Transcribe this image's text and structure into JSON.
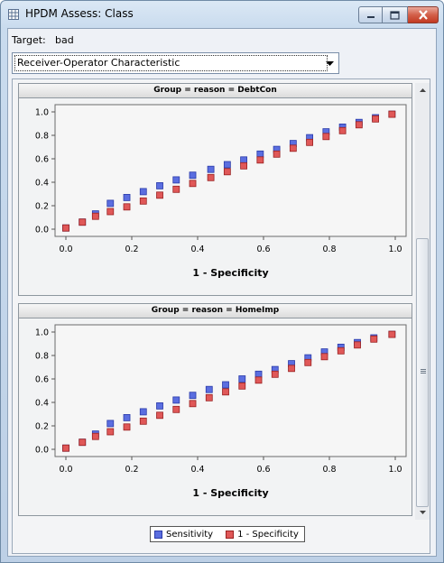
{
  "window": {
    "title": "HPDM Assess: Class"
  },
  "target": {
    "label": "Target:",
    "value": "bad"
  },
  "select": {
    "value": "Receiver-Operator Characteristic"
  },
  "colors": {
    "sensitivity": "#5b6ee0",
    "specificity": "#e05858",
    "sensitivity_edge": "#2a3aa8",
    "specificity_edge": "#9a2020"
  },
  "chart_data": [
    {
      "type": "scatter",
      "title": "Group = reason = DebtCon",
      "xlabel": "1 - Specificity",
      "ylabel": "",
      "xlim": [
        0,
        1
      ],
      "ylim": [
        0,
        1
      ],
      "xticks": [
        "0.0",
        "0.2",
        "0.4",
        "0.6",
        "0.8",
        "1.0"
      ],
      "yticks": [
        "0.0",
        "0.2",
        "0.4",
        "0.6",
        "0.8",
        "1.0"
      ],
      "x": [
        0.0,
        0.05,
        0.09,
        0.135,
        0.185,
        0.235,
        0.285,
        0.335,
        0.385,
        0.44,
        0.49,
        0.54,
        0.59,
        0.64,
        0.69,
        0.74,
        0.79,
        0.84,
        0.89,
        0.94,
        0.99
      ],
      "series": [
        {
          "name": "Sensitivity",
          "values": [
            0.01,
            0.06,
            0.13,
            0.22,
            0.27,
            0.32,
            0.37,
            0.42,
            0.46,
            0.51,
            0.55,
            0.59,
            0.64,
            0.68,
            0.73,
            0.78,
            0.83,
            0.87,
            0.91,
            0.95,
            0.98
          ]
        },
        {
          "name": "1 - Specificity",
          "values": [
            0.01,
            0.06,
            0.11,
            0.15,
            0.19,
            0.24,
            0.29,
            0.34,
            0.39,
            0.44,
            0.49,
            0.54,
            0.59,
            0.64,
            0.69,
            0.74,
            0.79,
            0.84,
            0.89,
            0.94,
            0.98
          ]
        }
      ]
    },
    {
      "type": "scatter",
      "title": "Group = reason = HomeImp",
      "xlabel": "1 - Specificity",
      "ylabel": "",
      "xlim": [
        0,
        1
      ],
      "ylim": [
        0,
        1
      ],
      "xticks": [
        "0.0",
        "0.2",
        "0.4",
        "0.6",
        "0.8",
        "1.0"
      ],
      "yticks": [
        "0.0",
        "0.2",
        "0.4",
        "0.6",
        "0.8",
        "1.0"
      ],
      "x": [
        0.0,
        0.05,
        0.09,
        0.135,
        0.185,
        0.235,
        0.285,
        0.335,
        0.385,
        0.435,
        0.485,
        0.535,
        0.585,
        0.635,
        0.685,
        0.735,
        0.785,
        0.835,
        0.885,
        0.935,
        0.99
      ],
      "series": [
        {
          "name": "Sensitivity",
          "values": [
            0.01,
            0.06,
            0.13,
            0.22,
            0.27,
            0.32,
            0.37,
            0.42,
            0.46,
            0.51,
            0.55,
            0.6,
            0.64,
            0.68,
            0.73,
            0.78,
            0.83,
            0.87,
            0.91,
            0.95,
            0.98
          ]
        },
        {
          "name": "1 - Specificity",
          "values": [
            0.01,
            0.06,
            0.11,
            0.15,
            0.19,
            0.24,
            0.29,
            0.34,
            0.39,
            0.44,
            0.49,
            0.54,
            0.59,
            0.64,
            0.69,
            0.74,
            0.79,
            0.84,
            0.89,
            0.94,
            0.98
          ]
        }
      ]
    }
  ],
  "legend": {
    "items": [
      "Sensitivity",
      "1 - Specificity"
    ]
  }
}
